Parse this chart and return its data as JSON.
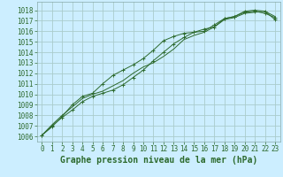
{
  "title": "Graphe pression niveau de la mer (hPa)",
  "background_color": "#cceeff",
  "grid_color": "#aacccc",
  "line_color": "#2d6a2d",
  "xlim": [
    -0.5,
    23.5
  ],
  "ylim": [
    1005.5,
    1018.8
  ],
  "xticks": [
    0,
    1,
    2,
    3,
    4,
    5,
    6,
    7,
    8,
    9,
    10,
    11,
    12,
    13,
    14,
    15,
    16,
    17,
    18,
    19,
    20,
    21,
    22,
    23
  ],
  "yticks": [
    1006,
    1007,
    1008,
    1009,
    1010,
    1011,
    1012,
    1013,
    1014,
    1015,
    1016,
    1017,
    1018
  ],
  "series": [
    [
      1006.1,
      1007.0,
      1007.8,
      1008.5,
      1009.3,
      1009.8,
      1010.1,
      1010.4,
      1010.9,
      1011.6,
      1012.3,
      1013.2,
      1014.0,
      1014.8,
      1015.4,
      1015.9,
      1016.2,
      1016.4,
      1017.2,
      1017.4,
      1017.9,
      1018.0,
      1017.9,
      1017.1
    ],
    [
      1006.1,
      1007.1,
      1008.0,
      1008.8,
      1009.6,
      1010.0,
      1010.3,
      1010.8,
      1011.3,
      1012.0,
      1012.6,
      1013.0,
      1013.6,
      1014.3,
      1015.2,
      1015.6,
      1015.9,
      1016.4,
      1017.1,
      1017.3,
      1017.7,
      1017.8,
      1017.9,
      1017.4
    ],
    [
      1006.1,
      1006.9,
      1007.9,
      1009.0,
      1009.8,
      1010.1,
      1011.0,
      1011.8,
      1012.3,
      1012.8,
      1013.4,
      1014.2,
      1015.1,
      1015.5,
      1015.8,
      1015.9,
      1016.0,
      1016.6,
      1017.2,
      1017.4,
      1017.8,
      1017.9,
      1017.7,
      1017.3
    ]
  ],
  "marker_series": [
    0,
    2
  ],
  "tick_fontsize": 5.5,
  "title_fontsize": 7.0
}
